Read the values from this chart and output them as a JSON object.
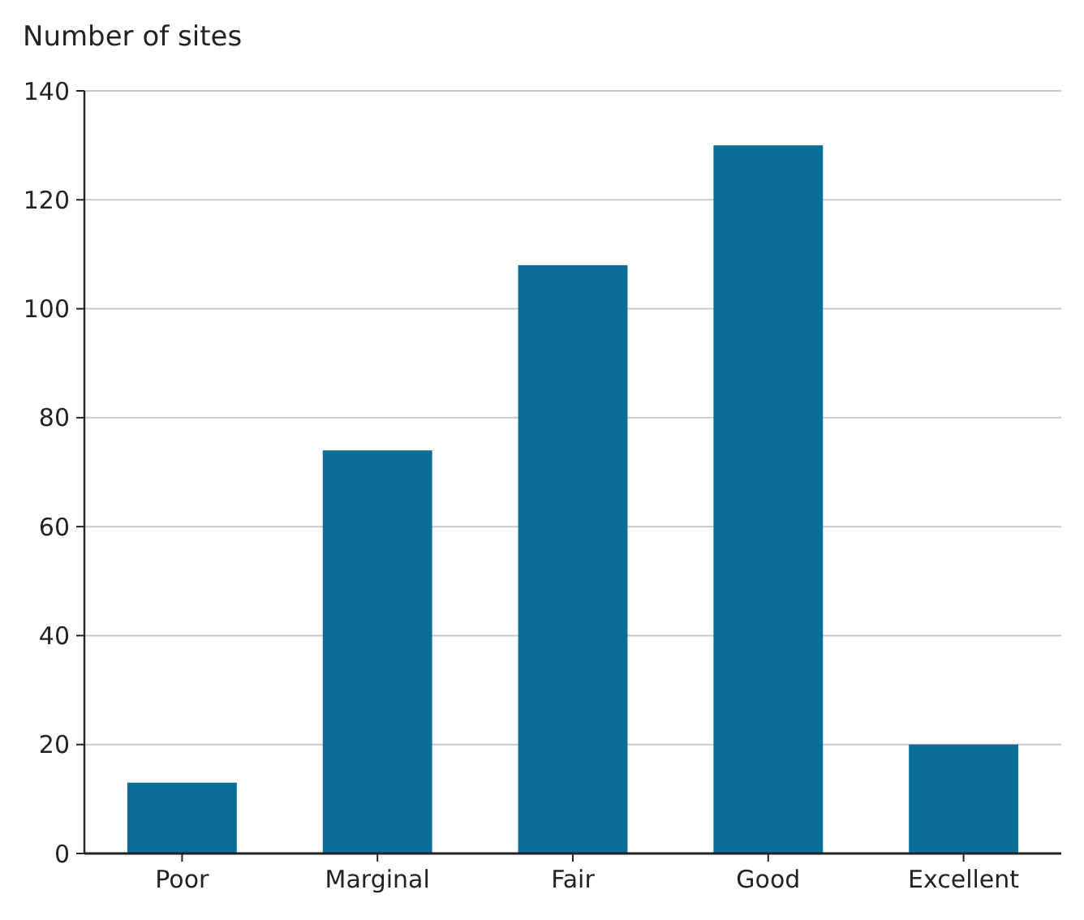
{
  "chart_data": {
    "type": "bar",
    "ylabel": "Number of sites",
    "categories": [
      "Poor",
      "Marginal",
      "Fair",
      "Good",
      "Excellent"
    ],
    "values": [
      13,
      74,
      108,
      130,
      20
    ],
    "color": "#0b6e99",
    "ylim": [
      0,
      140
    ],
    "yticks": [
      0,
      20,
      40,
      60,
      80,
      100,
      120,
      140
    ],
    "grid": "y"
  }
}
